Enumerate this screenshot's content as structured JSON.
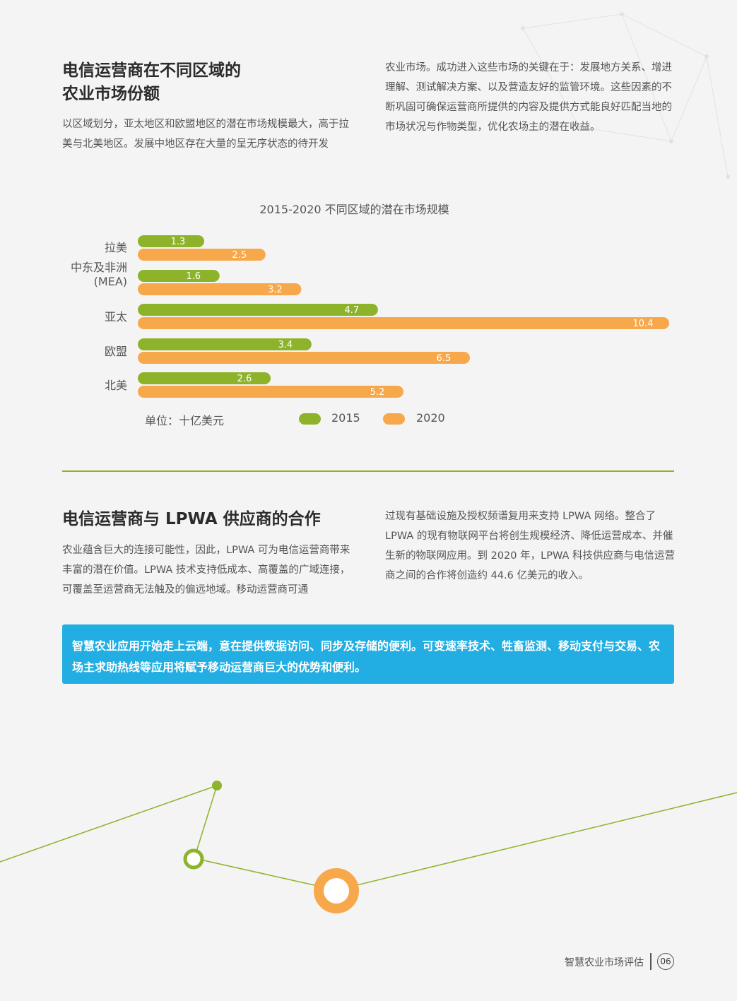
{
  "section1": {
    "title_line1": "电信运营商在不同区域的",
    "title_line2": "农业市场份额",
    "left_para": "以区域划分，亚太地区和欧盟地区的潜在市场规模最大，高于拉美与北美地区。发展中地区存在大量的呈无序状态的待开发",
    "right_para": "农业市场。成功进入这些市场的关键在于：发展地方关系、增进理解、测试解决方案、以及营造友好的监管环境。这些因素的不断巩固可确保运营商所提供的内容及提供方式能良好匹配当地的市场状况与作物类型，优化农场主的潜在收益。"
  },
  "chart_data": {
    "type": "bar",
    "orientation": "horizontal",
    "title": "2015-2020 不同区域的潜在市场规模",
    "categories": [
      "拉美",
      "中东及非洲\n(MEA)",
      "亚太",
      "欧盟",
      "北美"
    ],
    "series": [
      {
        "name": "2015",
        "values": [
          1.3,
          1.6,
          4.7,
          3.4,
          2.6
        ],
        "color": "#8db32a"
      },
      {
        "name": "2020",
        "values": [
          2.5,
          3.2,
          10.4,
          6.5,
          5.2
        ],
        "color": "#f7a84a"
      }
    ],
    "xlim": [
      0,
      10.4
    ],
    "unit_label": "单位：十亿美元",
    "legend_position": "bottom",
    "grid": false
  },
  "chart_labels": {
    "cat_0": "拉美",
    "cat_1a": "中东及非洲",
    "cat_1b": "(MEA)",
    "cat_2": "亚太",
    "cat_3": "欧盟",
    "cat_4": "北美"
  },
  "section2": {
    "title": "电信运营商与 LPWA 供应商的合作",
    "left_para": "农业蕴含巨大的连接可能性，因此，LPWA 可为电信运营商带来丰富的潜在价值。LPWA 技术支持低成本、高覆盖的广域连接，可覆盖至运营商无法触及的偏远地域。移动运营商可通",
    "right_para": "过现有基础设施及授权频谱复用来支持 LPWA 网络。整合了 LPWA 的现有物联网平台将创生规模经济、降低运营成本、并催生新的物联网应用。到 2020 年，LPWA 科技供应商与电信运营商之间的合作将创造约 44.6 亿美元的收入。"
  },
  "callout": {
    "text": "智慧农业应用开始走上云端，意在提供数据访问、同步及存储的便利。可变速率技术、牲畜监测、移动支付与交易、农场主求助热线等应用将赋予移动运营商巨大的优势和便利。"
  },
  "footer": {
    "title": "智慧农业市场评估",
    "page_number": "06"
  },
  "colors": {
    "green": "#8db32a",
    "orange": "#f7a84a",
    "blue": "#22aee3"
  }
}
